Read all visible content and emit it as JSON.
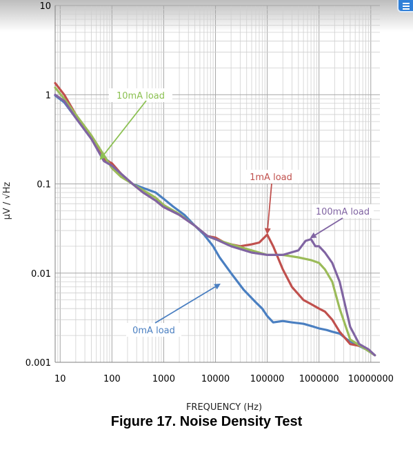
{
  "chart_data": {
    "type": "line",
    "title": "Figure 17. Noise Density Test",
    "xlabel": "FREQUENCY (Hz)",
    "ylabel": "µV / √Hz",
    "x_scale": "log",
    "y_scale": "log",
    "xlim": [
      8,
      15000000
    ],
    "ylim": [
      0.001,
      10
    ],
    "grid": true,
    "x_ticks": [
      "10",
      "100",
      "1000",
      "10000",
      "100000",
      "1000000",
      "10000000"
    ],
    "y_ticks": [
      "10",
      "1",
      "0.1",
      "0.01",
      "0.001"
    ],
    "series": [
      {
        "name": "0mA load",
        "color": "#4a7fc1",
        "points": [
          [
            8,
            0.98
          ],
          [
            12,
            0.82
          ],
          [
            20,
            0.55
          ],
          [
            40,
            0.32
          ],
          [
            70,
            0.2
          ],
          [
            100,
            0.165
          ],
          [
            150,
            0.13
          ],
          [
            250,
            0.1
          ],
          [
            400,
            0.09
          ],
          [
            700,
            0.08
          ],
          [
            1000,
            0.068
          ],
          [
            1500,
            0.056
          ],
          [
            2500,
            0.045
          ],
          [
            4000,
            0.034
          ],
          [
            6000,
            0.027
          ],
          [
            9000,
            0.02
          ],
          [
            12000,
            0.015
          ],
          [
            20000,
            0.01
          ],
          [
            35000,
            0.0065
          ],
          [
            60000,
            0.0047
          ],
          [
            80000,
            0.004
          ],
          [
            100000,
            0.0033
          ],
          [
            130000,
            0.0028
          ],
          [
            200000,
            0.0029
          ],
          [
            300000,
            0.0028
          ],
          [
            500000,
            0.0027
          ],
          [
            800000,
            0.0025
          ],
          [
            1000000,
            0.0024
          ],
          [
            1400000,
            0.0023
          ],
          [
            1800000,
            0.0022
          ],
          [
            2500000,
            0.0021
          ],
          [
            3500000,
            0.0018
          ],
          [
            5000000,
            0.0016
          ],
          [
            8000000,
            0.0014
          ],
          [
            12000000,
            0.0012
          ]
        ]
      },
      {
        "name": "1mA load",
        "color": "#c0504d",
        "points": [
          [
            8,
            1.35
          ],
          [
            12,
            1.0
          ],
          [
            20,
            0.6
          ],
          [
            40,
            0.32
          ],
          [
            70,
            0.19
          ],
          [
            100,
            0.17
          ],
          [
            150,
            0.13
          ],
          [
            250,
            0.1
          ],
          [
            400,
            0.08
          ],
          [
            700,
            0.065
          ],
          [
            1000,
            0.055
          ],
          [
            2000,
            0.045
          ],
          [
            4000,
            0.034
          ],
          [
            7000,
            0.026
          ],
          [
            10000,
            0.025
          ],
          [
            15000,
            0.022
          ],
          [
            20000,
            0.021
          ],
          [
            30000,
            0.02
          ],
          [
            50000,
            0.021
          ],
          [
            70000,
            0.022
          ],
          [
            100000,
            0.027
          ],
          [
            130000,
            0.02
          ],
          [
            200000,
            0.011
          ],
          [
            300000,
            0.007
          ],
          [
            500000,
            0.005
          ],
          [
            700000,
            0.0045
          ],
          [
            1000000,
            0.004
          ],
          [
            1300000,
            0.0037
          ],
          [
            1800000,
            0.003
          ],
          [
            2500000,
            0.0022
          ],
          [
            4000000,
            0.0016
          ],
          [
            7000000,
            0.0015
          ],
          [
            12000000,
            0.0012
          ]
        ]
      },
      {
        "name": "10mA load",
        "color": "#9bbb59",
        "points": [
          [
            8,
            1.2
          ],
          [
            12,
            0.9
          ],
          [
            20,
            0.6
          ],
          [
            40,
            0.35
          ],
          [
            70,
            0.21
          ],
          [
            100,
            0.15
          ],
          [
            150,
            0.12
          ],
          [
            250,
            0.1
          ],
          [
            400,
            0.085
          ],
          [
            700,
            0.07
          ],
          [
            1000,
            0.058
          ],
          [
            2000,
            0.046
          ],
          [
            4000,
            0.034
          ],
          [
            7000,
            0.026
          ],
          [
            10000,
            0.024
          ],
          [
            20000,
            0.021
          ],
          [
            50000,
            0.018
          ],
          [
            100000,
            0.016
          ],
          [
            200000,
            0.016
          ],
          [
            400000,
            0.015
          ],
          [
            700000,
            0.014
          ],
          [
            1000000,
            0.013
          ],
          [
            1300000,
            0.011
          ],
          [
            1800000,
            0.008
          ],
          [
            2500000,
            0.004
          ],
          [
            4000000,
            0.0018
          ],
          [
            8000000,
            0.0014
          ],
          [
            12000000,
            0.0012
          ]
        ]
      },
      {
        "name": "100mA load",
        "color": "#8064a2",
        "points": [
          [
            8,
            1.0
          ],
          [
            12,
            0.85
          ],
          [
            20,
            0.55
          ],
          [
            40,
            0.32
          ],
          [
            70,
            0.18
          ],
          [
            100,
            0.16
          ],
          [
            150,
            0.13
          ],
          [
            250,
            0.1
          ],
          [
            400,
            0.08
          ],
          [
            700,
            0.065
          ],
          [
            1000,
            0.055
          ],
          [
            2000,
            0.045
          ],
          [
            4000,
            0.034
          ],
          [
            7000,
            0.026
          ],
          [
            10000,
            0.024
          ],
          [
            20000,
            0.02
          ],
          [
            50000,
            0.017
          ],
          [
            100000,
            0.016
          ],
          [
            200000,
            0.016
          ],
          [
            400000,
            0.018
          ],
          [
            550000,
            0.023
          ],
          [
            700000,
            0.024
          ],
          [
            850000,
            0.02
          ],
          [
            1000000,
            0.02
          ],
          [
            1300000,
            0.017
          ],
          [
            1800000,
            0.013
          ],
          [
            2500000,
            0.008
          ],
          [
            4000000,
            0.0025
          ],
          [
            6000000,
            0.0016
          ],
          [
            9000000,
            0.0014
          ],
          [
            12000000,
            0.0012
          ]
        ]
      }
    ],
    "annotations": [
      {
        "text": "10mA load",
        "color": "#8cc152",
        "arrow_to": [
          60,
          0.19
        ]
      },
      {
        "text": "1mA load",
        "color": "#c0504d",
        "arrow_to": [
          100000,
          0.028
        ]
      },
      {
        "text": "100mA load",
        "color": "#8064a2",
        "arrow_to": [
          700000,
          0.025
        ]
      },
      {
        "text": "0mA load",
        "color": "#4a7fc1",
        "arrow_to": [
          12000,
          0.0075
        ]
      }
    ]
  }
}
